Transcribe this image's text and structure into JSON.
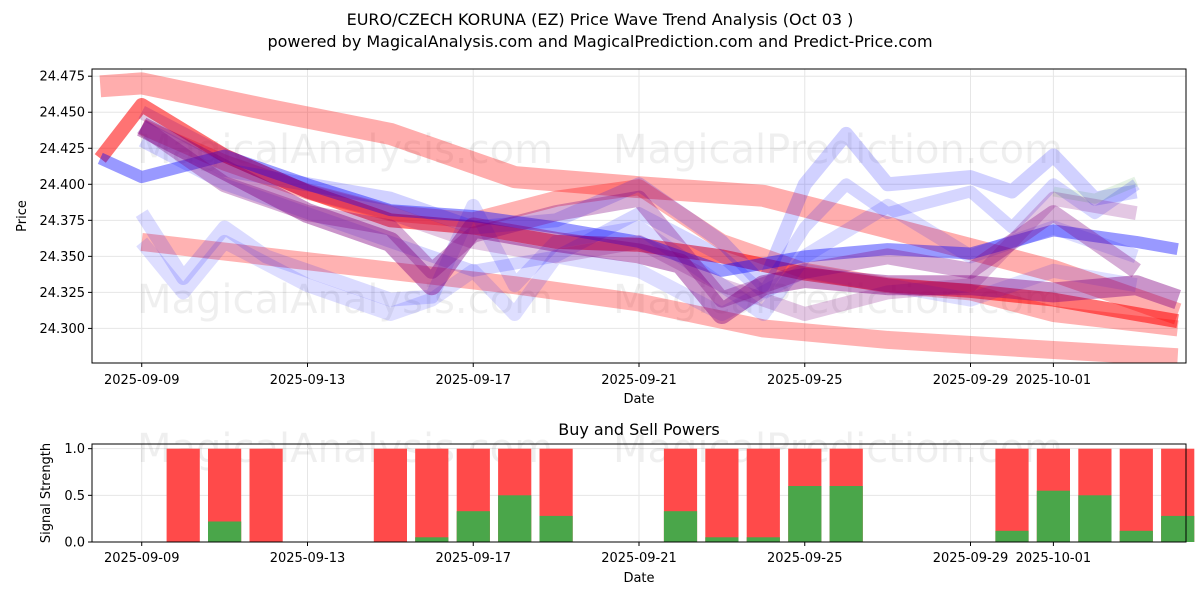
{
  "title_line1": "EURO/CZECH KORUNA (EZ) Price Wave Trend Analysis (Oct 03 )",
  "title_line2": "powered by MagicalAnalysis.com and MagicalPrediction.com and Predict-Price.com",
  "watermarks": [
    "MagicalAnalysis.com",
    "MagicalPrediction.com"
  ],
  "colors": {
    "red": "#ff0000",
    "blue": "#0000ff",
    "purple": "#800080",
    "green": "#008000",
    "buy": "#4aa64a",
    "sell": "#ff4a4a",
    "grid": "#e6e6e6"
  },
  "chart_data": [
    {
      "type": "area",
      "title": "",
      "xlabel": "Date",
      "ylabel": "Price",
      "ylim": [
        24.276,
        24.48
      ],
      "xlim": [
        -1.2,
        25.2
      ],
      "grid": true,
      "x_ticks": [
        "2025-09-09",
        "2025-09-13",
        "2025-09-17",
        "2025-09-21",
        "2025-09-25",
        "2025-09-29",
        "2025-10-01"
      ],
      "x_tick_days": [
        0,
        4,
        8,
        12,
        16,
        20,
        22
      ],
      "y_ticks": [
        "24.300",
        "24.325",
        "24.350",
        "24.375",
        "24.400",
        "24.425",
        "24.450",
        "24.475"
      ],
      "y_tick_values": [
        24.3,
        24.325,
        24.35,
        24.375,
        24.4,
        24.425,
        24.45,
        24.475
      ],
      "bands": [
        {
          "name": "red-wide-upper",
          "color": "red",
          "opacity": 0.32,
          "width": 22,
          "x": [
            -1,
            0,
            3,
            6,
            9,
            12,
            15,
            18,
            22,
            25
          ],
          "y": [
            24.468,
            24.47,
            24.452,
            24.435,
            24.405,
            24.398,
            24.392,
            24.37,
            24.34,
            24.31
          ]
        },
        {
          "name": "red-wide-lower",
          "color": "red",
          "opacity": 0.3,
          "width": 18,
          "x": [
            0,
            3,
            6,
            9,
            12,
            15,
            18,
            22,
            25
          ],
          "y": [
            24.36,
            24.35,
            24.34,
            24.33,
            24.318,
            24.3,
            24.292,
            24.285,
            24.28
          ]
        },
        {
          "name": "red-main",
          "color": "red",
          "opacity": 0.55,
          "width": 14,
          "x": [
            -1,
            0,
            2,
            4,
            6,
            8,
            10,
            12,
            14,
            16,
            18,
            20,
            22,
            25
          ],
          "y": [
            24.418,
            24.455,
            24.42,
            24.395,
            24.375,
            24.37,
            24.36,
            24.358,
            24.35,
            24.338,
            24.33,
            24.326,
            24.32,
            24.305
          ]
        },
        {
          "name": "red-band-2",
          "color": "red",
          "opacity": 0.3,
          "width": 16,
          "x": [
            0,
            2,
            4,
            6,
            8,
            10,
            12,
            14,
            16,
            18,
            20,
            22,
            25
          ],
          "y": [
            24.44,
            24.415,
            24.395,
            24.38,
            24.375,
            24.39,
            24.398,
            24.36,
            24.34,
            24.33,
            24.325,
            24.31,
            24.3
          ]
        },
        {
          "name": "blue-main",
          "color": "blue",
          "opacity": 0.4,
          "width": 12,
          "x": [
            -1,
            0,
            2,
            4,
            6,
            8,
            10,
            12,
            14,
            16,
            18,
            20,
            22,
            24,
            25
          ],
          "y": [
            24.418,
            24.405,
            24.42,
            24.4,
            24.382,
            24.378,
            24.37,
            24.36,
            24.34,
            24.35,
            24.355,
            24.352,
            24.368,
            24.36,
            24.355
          ]
        },
        {
          "name": "blue-upper",
          "color": "blue",
          "opacity": 0.18,
          "width": 14,
          "x": [
            0,
            2,
            4,
            6,
            8,
            10,
            12,
            14,
            15,
            16,
            17,
            18,
            20,
            21,
            22,
            23,
            24
          ],
          "y": [
            24.44,
            24.41,
            24.4,
            24.39,
            24.37,
            24.375,
            24.4,
            24.36,
            24.33,
            24.4,
            24.435,
            24.4,
            24.405,
            24.395,
            24.42,
            24.39,
            24.395
          ]
        },
        {
          "name": "blue-mid",
          "color": "blue",
          "opacity": 0.14,
          "width": 14,
          "x": [
            0,
            1,
            2,
            3,
            4,
            6,
            7,
            8,
            9,
            10,
            12,
            14,
            15,
            16,
            18,
            20,
            22,
            24
          ],
          "y": [
            24.38,
            24.335,
            24.37,
            24.35,
            24.34,
            24.32,
            24.322,
            24.385,
            24.33,
            24.36,
            24.37,
            24.33,
            24.31,
            24.35,
            24.385,
            24.35,
            24.37,
            24.35
          ]
        },
        {
          "name": "blue-low",
          "color": "blue",
          "opacity": 0.13,
          "width": 14,
          "x": [
            0,
            1,
            2,
            4,
            6,
            7,
            8,
            9,
            10,
            12,
            14,
            16,
            18,
            20,
            22,
            24
          ],
          "y": [
            24.36,
            24.325,
            24.36,
            24.33,
            24.31,
            24.32,
            24.34,
            24.31,
            24.35,
            24.34,
            24.31,
            24.34,
            24.33,
            24.32,
            24.34,
            24.33
          ]
        },
        {
          "name": "blue-wave",
          "color": "blue",
          "opacity": 0.16,
          "width": 12,
          "x": [
            0,
            2,
            4,
            6,
            8,
            10,
            12,
            14,
            15,
            16,
            17,
            18,
            20,
            21,
            22,
            23,
            24
          ],
          "y": [
            24.43,
            24.4,
            24.38,
            24.36,
            24.34,
            24.35,
            24.38,
            24.35,
            24.325,
            24.37,
            24.4,
            24.38,
            24.395,
            24.37,
            24.4,
            24.38,
            24.4
          ]
        },
        {
          "name": "purple-main",
          "color": "purple",
          "opacity": 0.42,
          "width": 20,
          "x": [
            0,
            2,
            4,
            6,
            7,
            8,
            10,
            12,
            13,
            14,
            15,
            16,
            18,
            20,
            22,
            24,
            25
          ],
          "y": [
            24.44,
            24.41,
            24.38,
            24.36,
            24.33,
            24.37,
            24.36,
            24.352,
            24.345,
            24.31,
            24.33,
            24.335,
            24.33,
            24.33,
            24.325,
            24.33,
            24.32
          ]
        },
        {
          "name": "purple-2",
          "color": "purple",
          "opacity": 0.32,
          "width": 16,
          "x": [
            0,
            2,
            4,
            6,
            7,
            8,
            10,
            12,
            14,
            16,
            18,
            20,
            22,
            24
          ],
          "y": [
            24.44,
            24.4,
            24.38,
            24.37,
            24.34,
            24.365,
            24.38,
            24.39,
            24.32,
            24.34,
            24.35,
            24.34,
            24.38,
            24.34
          ]
        },
        {
          "name": "purple-3",
          "color": "purple",
          "opacity": 0.22,
          "width": 14,
          "x": [
            0,
            2,
            4,
            6,
            8,
            10,
            12,
            14,
            16,
            18,
            20,
            22,
            24
          ],
          "y": [
            24.45,
            24.42,
            24.395,
            24.38,
            24.36,
            24.35,
            24.36,
            24.33,
            24.31,
            24.325,
            24.33,
            24.39,
            24.38
          ]
        },
        {
          "name": "green-hint",
          "color": "green",
          "opacity": 0.1,
          "width": 10,
          "x": [
            22,
            23,
            24
          ],
          "y": [
            24.395,
            24.39,
            24.402
          ]
        }
      ]
    },
    {
      "type": "bar",
      "title": "Buy and Sell Powers",
      "xlabel": "Date",
      "ylabel": "Signal Strength",
      "ylim": [
        0,
        1.05
      ],
      "xlim": [
        -1.2,
        25.2
      ],
      "grid": true,
      "x_ticks": [
        "2025-09-09",
        "2025-09-13",
        "2025-09-17",
        "2025-09-21",
        "2025-09-25",
        "2025-09-29",
        "2025-10-01"
      ],
      "x_tick_days": [
        0,
        4,
        8,
        12,
        16,
        20,
        22
      ],
      "y_ticks": [
        "0.0",
        "0.5",
        "1.0"
      ],
      "y_tick_values": [
        0,
        0.5,
        1.0
      ],
      "series": [
        {
          "name": "Sell",
          "color": "sell"
        },
        {
          "name": "Buy",
          "color": "buy"
        }
      ],
      "bars": [
        {
          "day": 1,
          "buy": 0.0
        },
        {
          "day": 2,
          "buy": 0.22
        },
        {
          "day": 3,
          "buy": 0.0
        },
        {
          "day": 6,
          "buy": 0.0
        },
        {
          "day": 7,
          "buy": 0.05
        },
        {
          "day": 8,
          "buy": 0.33
        },
        {
          "day": 9,
          "buy": 0.5
        },
        {
          "day": 10,
          "buy": 0.28
        },
        {
          "day": 13,
          "buy": 0.33
        },
        {
          "day": 14,
          "buy": 0.05
        },
        {
          "day": 15,
          "buy": 0.05
        },
        {
          "day": 16,
          "buy": 0.6
        },
        {
          "day": 17,
          "buy": 0.6
        },
        {
          "day": 21,
          "buy": 0.12
        },
        {
          "day": 22,
          "buy": 0.55
        },
        {
          "day": 23,
          "buy": 0.5
        },
        {
          "day": 24,
          "buy": 0.12
        },
        {
          "day": 25,
          "buy": 0.28
        }
      ]
    }
  ]
}
